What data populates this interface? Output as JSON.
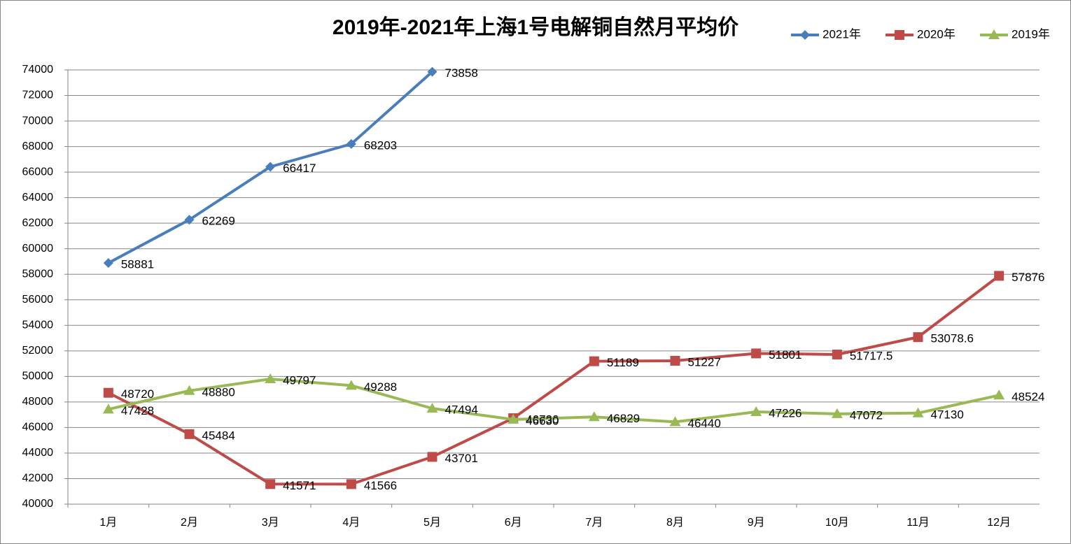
{
  "chart_data": {
    "type": "line",
    "title": "2019年-2021年上海1号电解铜自然月平均价",
    "categories": [
      "1月",
      "2月",
      "3月",
      "4月",
      "5月",
      "6月",
      "7月",
      "8月",
      "9月",
      "10月",
      "11月",
      "12月"
    ],
    "series": [
      {
        "name": "2021年",
        "color": "#4a7ebb",
        "marker": "diamond",
        "values": [
          58881,
          62269,
          66417,
          68203,
          73858,
          null,
          null,
          null,
          null,
          null,
          null,
          null
        ]
      },
      {
        "name": "2020年",
        "color": "#be4b48",
        "marker": "square",
        "values": [
          48720,
          45484,
          41571,
          41566,
          43701,
          46730,
          51189,
          51227,
          51801,
          51717.5,
          53078.6,
          57876
        ]
      },
      {
        "name": "2019年",
        "color": "#98b954",
        "marker": "triangle",
        "values": [
          47428,
          48880,
          49797,
          49288,
          47494,
          46630,
          46829,
          46440,
          47226,
          47072,
          47130,
          48524
        ]
      }
    ],
    "ylim": [
      40000,
      74000
    ],
    "yticks": [
      40000,
      42000,
      44000,
      46000,
      48000,
      50000,
      52000,
      54000,
      56000,
      58000,
      60000,
      62000,
      64000,
      66000,
      68000,
      70000,
      72000,
      74000
    ],
    "grid": true,
    "legend": "top-right"
  }
}
